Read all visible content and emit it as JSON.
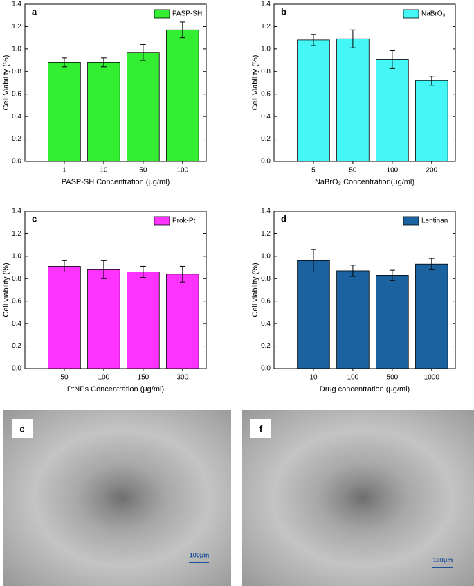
{
  "chart_data": [
    {
      "type": "bar",
      "panel": "a",
      "xlabel": "PASP-SH Concentration (μg/ml)",
      "ylabel": "Cell Viability (%)",
      "categories": [
        "1",
        "10",
        "50",
        "100"
      ],
      "series": [
        {
          "name": "PASP-SH",
          "color": "#33ee33",
          "values": [
            0.88,
            0.88,
            0.97,
            1.17
          ],
          "errors": [
            0.04,
            0.04,
            0.07,
            0.07
          ]
        }
      ],
      "ylim": [
        0,
        1.4
      ],
      "yticks": [
        {
          "value": 0,
          "label": "0.0"
        },
        0.2,
        0.4,
        0.6,
        0.8,
        {
          "value": 1,
          "label": "1.0"
        },
        1.2,
        1.4
      ],
      "legend": "upper right"
    },
    {
      "type": "bar",
      "panel": "b",
      "xlabel": "NaBrO₃ Concentration(μg/ml)",
      "ylabel": "Cell Viability (%)",
      "categories": [
        "5",
        "50",
        "100",
        "200"
      ],
      "series": [
        {
          "name": "NaBrO₃",
          "color": "#44f6f6",
          "values": [
            1.08,
            1.09,
            0.91,
            0.72
          ],
          "errors": [
            0.05,
            0.08,
            0.08,
            0.04
          ]
        }
      ],
      "ylim": [
        0,
        1.4
      ],
      "yticks": [
        {
          "value": 0,
          "label": "0.0"
        },
        0.2,
        0.4,
        0.6,
        0.8,
        {
          "value": 1,
          "label": "1.0"
        },
        1.2,
        1.4
      ],
      "legend": "upper right"
    },
    {
      "type": "bar",
      "panel": "c",
      "xlabel": "PtNPs Concentration   (μg/ml)",
      "ylabel": "Cell viability  (%)",
      "categories": [
        "50",
        "100",
        "150",
        "300"
      ],
      "series": [
        {
          "name": "Prok-Pt",
          "color": "#ff33ff",
          "values": [
            0.91,
            0.88,
            0.86,
            0.84
          ],
          "errors": [
            0.05,
            0.08,
            0.05,
            0.07
          ]
        }
      ],
      "ylim": [
        0,
        1.4
      ],
      "yticks": [
        {
          "value": 0,
          "label": "0.0"
        },
        0.2,
        0.4,
        0.6,
        0.8,
        {
          "value": 1,
          "label": "1.0"
        },
        1.2,
        1.4
      ],
      "legend": "upper right"
    },
    {
      "type": "bar",
      "panel": "d",
      "xlabel": "Drug concentration  (μg/ml)",
      "ylabel": "Cell viability  (%)",
      "categories": [
        "10",
        "100",
        "500",
        "1000"
      ],
      "series": [
        {
          "name": "Lentinan",
          "color": "#1a63a0",
          "values": [
            0.96,
            0.87,
            0.83,
            0.93
          ],
          "errors": [
            0.1,
            0.05,
            0.045,
            0.05
          ]
        }
      ],
      "ylim": [
        0,
        1.4
      ],
      "yticks": [
        {
          "value": 0,
          "label": "0.0"
        },
        0.2,
        0.4,
        0.6,
        0.8,
        {
          "value": 1,
          "label": "1.0"
        },
        1.2,
        1.4
      ],
      "legend": "upper right"
    }
  ],
  "images": [
    {
      "label": "e",
      "scale_bar": "100μm"
    },
    {
      "label": "f",
      "scale_bar": "100μm"
    }
  ]
}
